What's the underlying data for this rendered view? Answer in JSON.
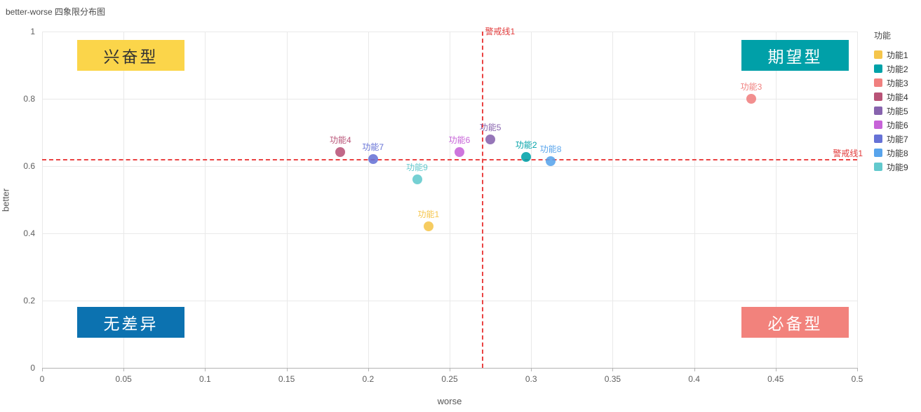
{
  "title": "better-worse 四象限分布图",
  "chart_data": {
    "type": "scatter",
    "title": "better-worse 四象限分布图",
    "xlabel": "worse",
    "ylabel": "better",
    "xlim": [
      0,
      0.5
    ],
    "ylim": [
      0,
      1
    ],
    "x_ticks": [
      0,
      0.05,
      0.1,
      0.15,
      0.2,
      0.25,
      0.3,
      0.35,
      0.4,
      0.45,
      0.5
    ],
    "y_ticks": [
      0,
      0.2,
      0.4,
      0.6,
      0.8,
      1
    ],
    "grid": true,
    "legend_title": "功能",
    "legend_position": "right",
    "series": [
      {
        "name": "功能1",
        "color": "#F5C54B",
        "x": 0.237,
        "y": 0.42
      },
      {
        "name": "功能2",
        "color": "#00A2A8",
        "x": 0.297,
        "y": 0.627
      },
      {
        "name": "功能3",
        "color": "#F0807F",
        "x": 0.435,
        "y": 0.8
      },
      {
        "name": "功能4",
        "color": "#B85377",
        "x": 0.183,
        "y": 0.642
      },
      {
        "name": "功能5",
        "color": "#8763AE",
        "x": 0.275,
        "y": 0.68
      },
      {
        "name": "功能6",
        "color": "#C763D8",
        "x": 0.256,
        "y": 0.642
      },
      {
        "name": "功能7",
        "color": "#6672D6",
        "x": 0.203,
        "y": 0.621
      },
      {
        "name": "功能8",
        "color": "#58A4EC",
        "x": 0.312,
        "y": 0.615
      },
      {
        "name": "功能9",
        "color": "#62C9CD",
        "x": 0.23,
        "y": 0.56
      }
    ],
    "warning_lines": {
      "color": "#E23C3C",
      "vertical": {
        "x": 0.27,
        "label": "警戒线1"
      },
      "horizontal": {
        "y": 0.62,
        "label": "警戒线1"
      }
    },
    "quadrant_labels": [
      {
        "text": "兴奋型",
        "bg": "#FBD54A",
        "color": "#333333",
        "position": "top-left"
      },
      {
        "text": "期望型",
        "bg": "#00A0A8",
        "color": "#ffffff",
        "position": "top-right"
      },
      {
        "text": "无差异",
        "bg": "#0C72B0",
        "color": "#ffffff",
        "position": "bottom-left"
      },
      {
        "text": "必备型",
        "bg": "#F2827C",
        "color": "#ffffff",
        "position": "bottom-right"
      }
    ]
  }
}
